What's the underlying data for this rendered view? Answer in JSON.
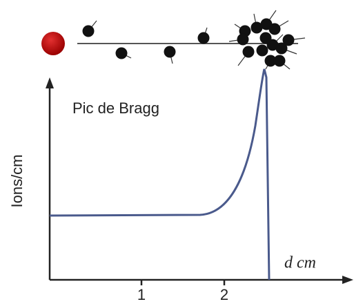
{
  "title": "Pic de Bragg",
  "y_label": "Ions/cm",
  "x_label": "d cm",
  "x_ticks": [
    "1",
    "2"
  ]
}
